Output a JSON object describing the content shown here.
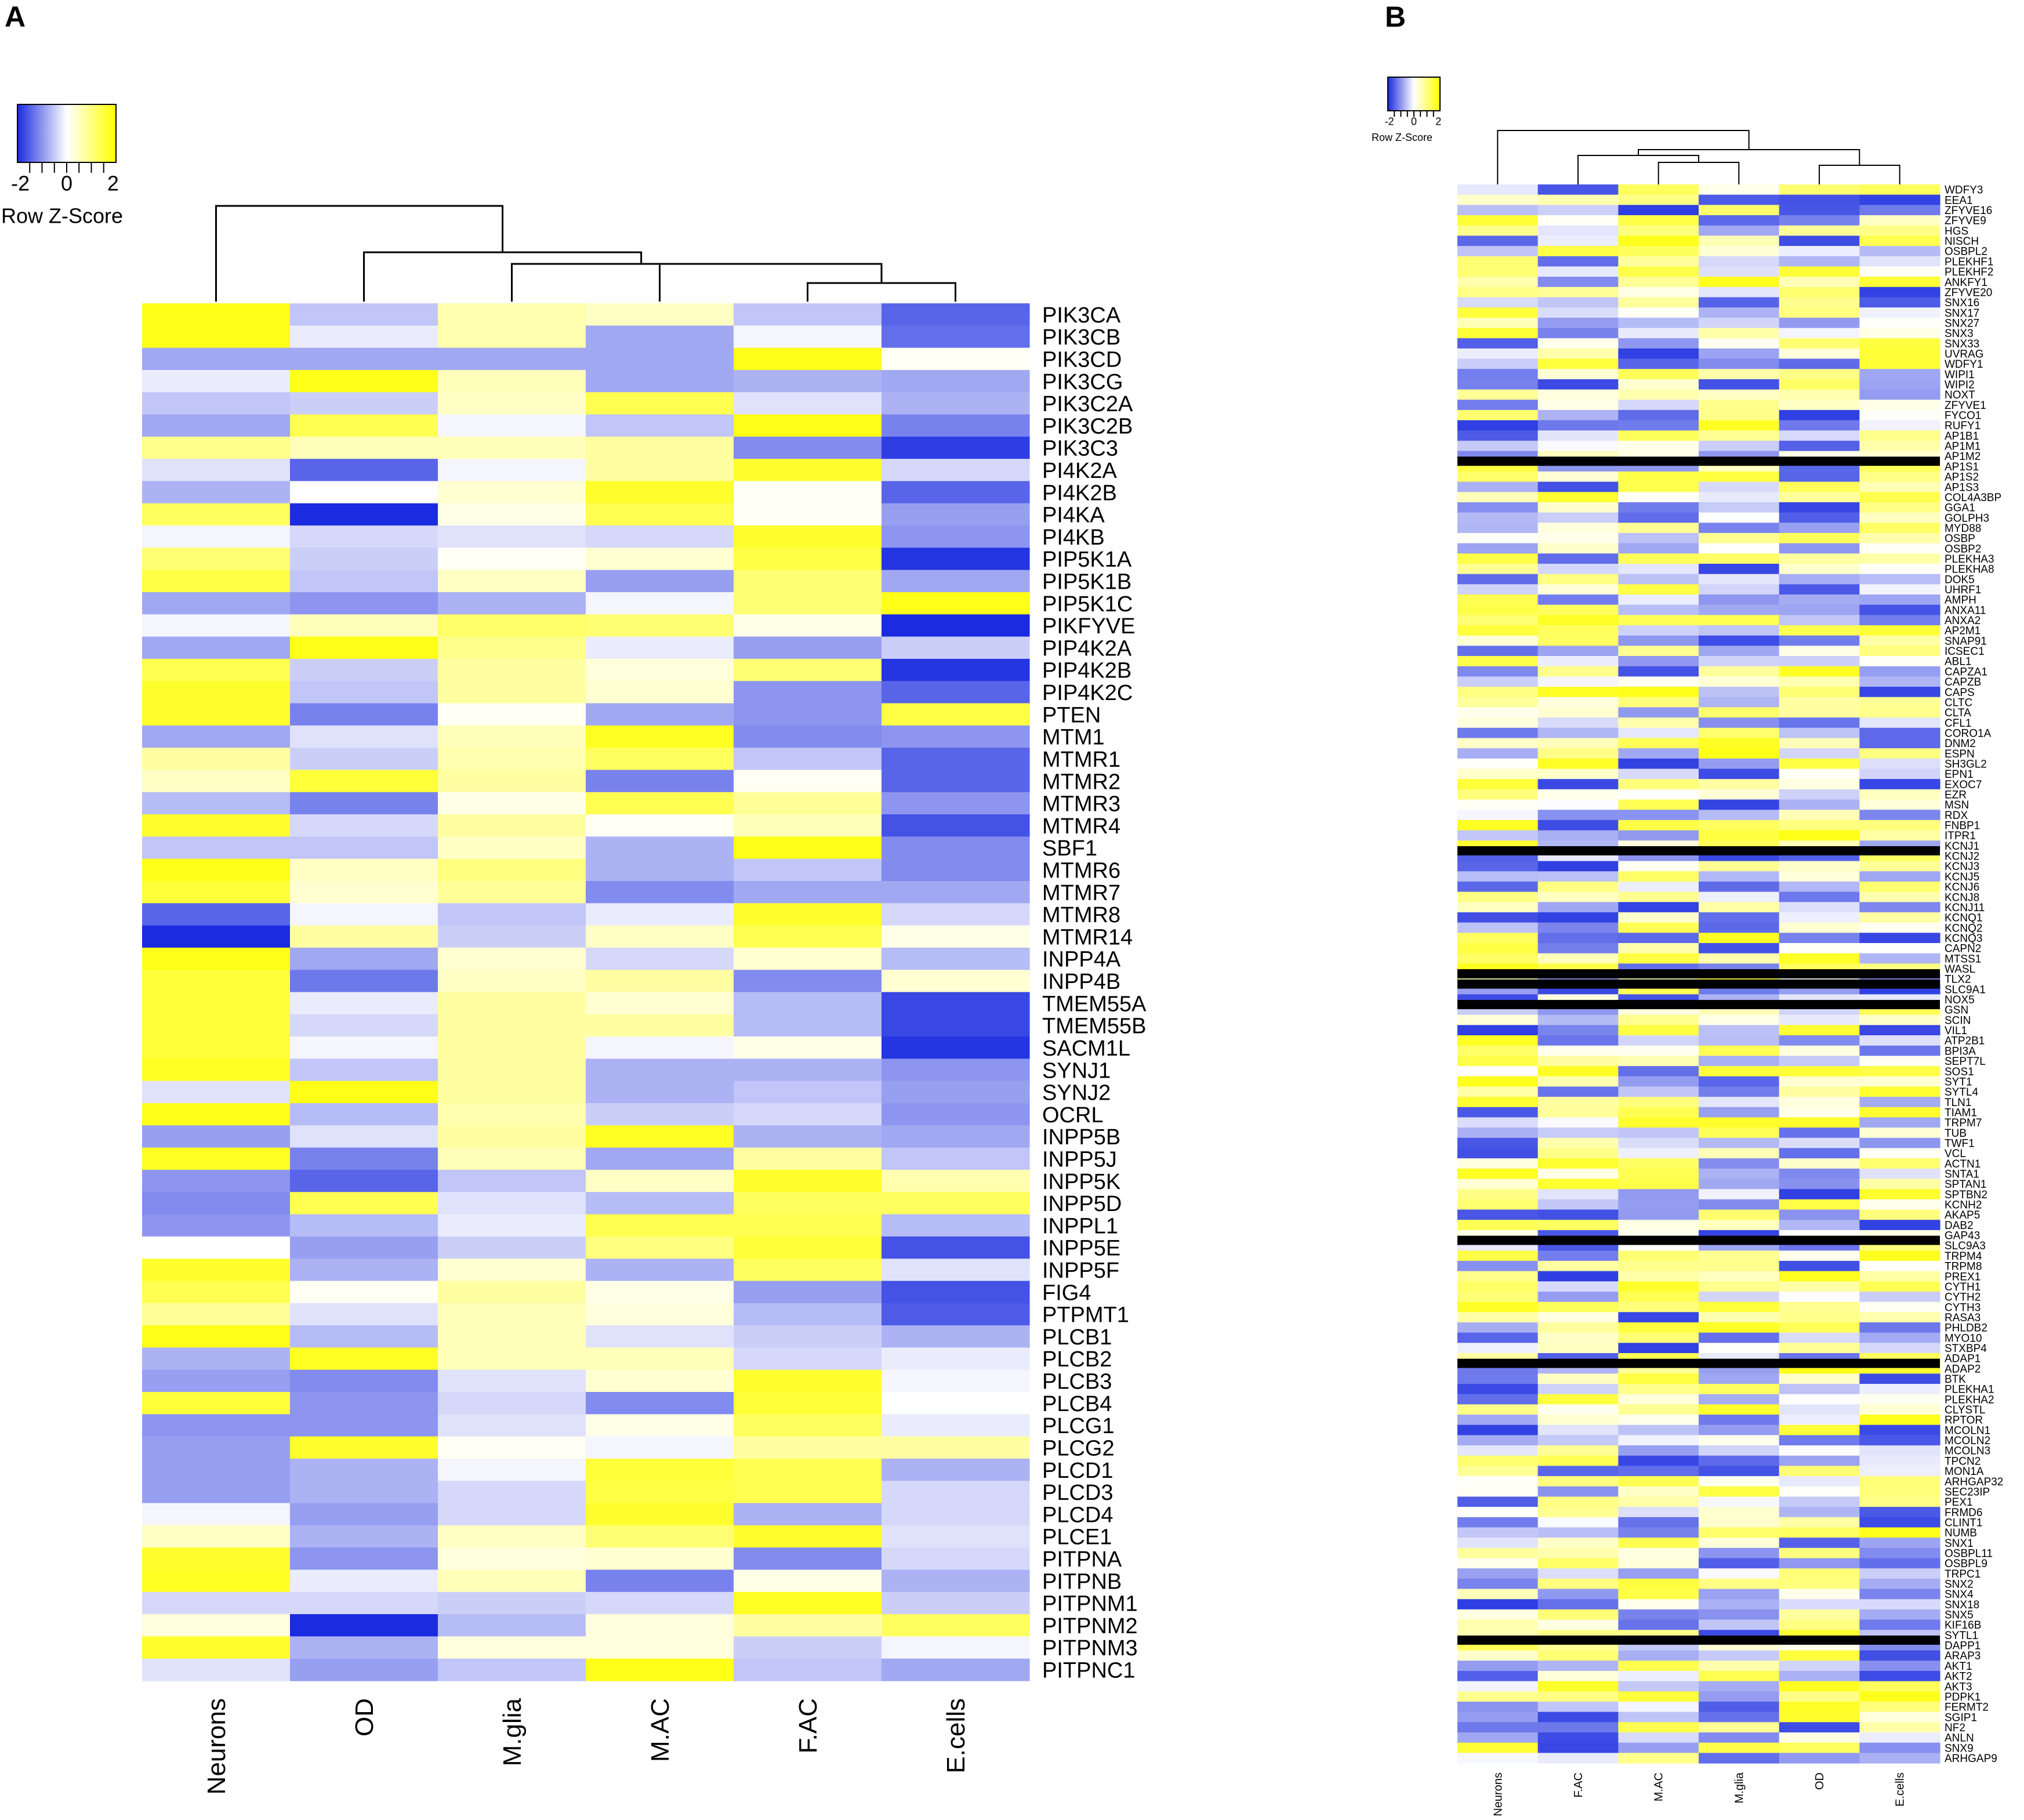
{
  "panels": {
    "a_label": "A",
    "b_label": "B"
  },
  "chart_data": [
    {
      "type": "heatmap",
      "panel": "A",
      "title": "",
      "legend": {
        "ticks": [
          "-2",
          "0",
          "2"
        ],
        "label": "Row Z-Score",
        "colors": {
          "low": "#1a2be0",
          "mid": "#ffffff",
          "high": "#ffff00"
        }
      },
      "columns": [
        "Neurons",
        "OD",
        "M.glia",
        "M.AC",
        "F.AC",
        "E.cells"
      ],
      "rows": [
        "PIK3CA",
        "PIK3CB",
        "PIK3CD",
        "PIK3CG",
        "PIK3C2A",
        "PIK3C2B",
        "PIK3C3",
        "PI4K2A",
        "PI4K2B",
        "PI4KA",
        "PI4KB",
        "PIP5K1A",
        "PIP5K1B",
        "PIP5K1C",
        "PIKFYVE",
        "PIP4K2A",
        "PIP4K2B",
        "PIP4K2C",
        "PTEN",
        "MTM1",
        "MTMR1",
        "MTMR2",
        "MTMR3",
        "MTMR4",
        "SBF1",
        "MTMR6",
        "MTMR7",
        "MTMR8",
        "MTMR14",
        "INPP4A",
        "INPP4B",
        "TMEM55A",
        "TMEM55B",
        "SACM1L",
        "SYNJ1",
        "SYNJ2",
        "OCRL",
        "INPP5B",
        "INPP5J",
        "INPP5K",
        "INPP5D",
        "INPPL1",
        "INPP5E",
        "INPP5F",
        "FIG4",
        "PTPMT1",
        "PLCB1",
        "PLCB2",
        "PLCB3",
        "PLCB4",
        "PLCG1",
        "PLCG2",
        "PLCD1",
        "PLCD3",
        "PLCD4",
        "PLCE1",
        "PITPNA",
        "PITPNB",
        "PITPNM1",
        "PITPNM2",
        "PITPNM3",
        "PITPNC1"
      ],
      "values": [
        [
          2,
          -0.6,
          0.7,
          0.5,
          -0.6,
          -1.6
        ],
        [
          2,
          -0.2,
          0.7,
          -0.9,
          -0.1,
          -1.5
        ],
        [
          -0.9,
          -0.9,
          -0.9,
          -0.9,
          2,
          0.1
        ],
        [
          -0.2,
          2,
          0.6,
          -0.9,
          -0.8,
          -0.9
        ],
        [
          -0.6,
          -0.5,
          0.5,
          1.5,
          -0.3,
          -0.8
        ],
        [
          -0.9,
          1.5,
          -0.1,
          -0.6,
          2,
          -1.3
        ],
        [
          1,
          0.6,
          0.6,
          0.8,
          -1.2,
          -2
        ],
        [
          -0.3,
          -1.6,
          -0.1,
          0.8,
          1.8,
          -0.4
        ],
        [
          -0.8,
          0,
          0.4,
          1.8,
          0.1,
          -1.6
        ],
        [
          1.4,
          -2.2,
          0.2,
          1.5,
          0.1,
          -1
        ],
        [
          -0.1,
          -0.4,
          -0.3,
          -0.4,
          1.8,
          -1.1
        ],
        [
          1.2,
          -0.5,
          0.1,
          0.4,
          1.6,
          -2.1
        ],
        [
          1.6,
          -0.6,
          0.5,
          -1,
          1.2,
          -0.9
        ],
        [
          -0.9,
          -1.1,
          -0.8,
          -0.1,
          1.2,
          2
        ],
        [
          -0.1,
          0.6,
          1.3,
          1.2,
          0.2,
          -2.2
        ],
        [
          -0.9,
          2,
          1,
          -0.2,
          -1,
          -0.5
        ],
        [
          1.5,
          -0.5,
          0.8,
          0.3,
          1.2,
          -2.1
        ],
        [
          1.8,
          -0.6,
          0.8,
          0.4,
          -1.1,
          -1.6
        ],
        [
          1.8,
          -1.3,
          0.1,
          -0.9,
          -1.1,
          1.6
        ],
        [
          -0.9,
          -0.3,
          0.6,
          1.9,
          -1.2,
          -1.1
        ],
        [
          0.8,
          -0.5,
          0.7,
          1.4,
          -0.6,
          -1.6
        ],
        [
          0.5,
          1.7,
          0.8,
          -1.3,
          0.1,
          -1.6
        ],
        [
          -0.7,
          -1.3,
          0.2,
          1.5,
          0.9,
          -1.1
        ],
        [
          1.8,
          -0.4,
          0.8,
          0.1,
          0.6,
          -1.8
        ],
        [
          -0.6,
          -0.6,
          0.5,
          -0.8,
          2,
          -1.2
        ],
        [
          2,
          0.5,
          1.1,
          -0.8,
          -0.6,
          -1.2
        ],
        [
          1.7,
          0.4,
          0.9,
          -1.2,
          -0.9,
          -0.9
        ],
        [
          -1.6,
          -0.1,
          -0.6,
          -0.2,
          1.8,
          -0.4
        ],
        [
          -2.2,
          0.8,
          -0.5,
          0.5,
          1.5,
          0.2
        ],
        [
          2,
          -0.9,
          0.4,
          -0.4,
          0.4,
          -0.7
        ],
        [
          1.7,
          -1.4,
          0.5,
          0.8,
          -1.2,
          0.4
        ],
        [
          1.7,
          -0.2,
          0.8,
          0.4,
          -0.7,
          -1.9
        ],
        [
          1.7,
          -0.4,
          0.8,
          0.8,
          -0.7,
          -1.9
        ],
        [
          1.7,
          -0.1,
          0.8,
          -0.1,
          0.2,
          -2.1
        ],
        [
          1.9,
          -0.6,
          0.8,
          -0.8,
          -0.8,
          -1.1
        ],
        [
          -0.3,
          2,
          0.8,
          -0.8,
          -0.6,
          -1
        ],
        [
          2,
          -0.7,
          0.7,
          -0.5,
          -0.4,
          -1.1
        ],
        [
          -1,
          -0.3,
          0.8,
          1.9,
          -0.8,
          -0.9
        ],
        [
          1.9,
          -1.3,
          0.6,
          -0.9,
          0.8,
          -0.6
        ],
        [
          -1.1,
          -1.6,
          -0.6,
          0.5,
          1.8,
          0.7
        ],
        [
          -1.2,
          1.5,
          -0.3,
          -0.7,
          1.4,
          1.4
        ],
        [
          -1.1,
          -0.7,
          -0.2,
          1.5,
          1.5,
          -0.7
        ],
        [
          0,
          -1,
          -0.5,
          1.1,
          1.7,
          -1.8
        ],
        [
          1.8,
          -0.8,
          0.4,
          -0.8,
          1.4,
          -0.3
        ],
        [
          1.5,
          0.1,
          0.8,
          0.2,
          -1,
          -1.8
        ],
        [
          0.9,
          -0.3,
          0.6,
          0.3,
          -0.7,
          -1.7
        ],
        [
          2,
          -0.7,
          0.6,
          -0.3,
          -0.5,
          -0.8
        ],
        [
          -0.8,
          1.9,
          0.6,
          0.6,
          -0.4,
          -0.2
        ],
        [
          -1,
          -1.2,
          -0.3,
          0.4,
          1.8,
          -0.1
        ],
        [
          1.7,
          -1.1,
          -0.4,
          -1.2,
          1.7,
          0
        ],
        [
          -1.1,
          -1.1,
          -0.3,
          0.2,
          1.4,
          -0.2
        ],
        [
          -1,
          1.8,
          0.1,
          -0.1,
          0.8,
          0.8
        ],
        [
          -1,
          -0.8,
          -0.1,
          1.7,
          1.5,
          -0.8
        ],
        [
          -1,
          -0.8,
          -0.4,
          1.6,
          1.5,
          -0.4
        ],
        [
          -0.1,
          -1,
          -0.4,
          1.8,
          -0.8,
          -0.4
        ],
        [
          0.5,
          -0.8,
          0.5,
          1.2,
          1.8,
          -0.3
        ],
        [
          1.8,
          -1.1,
          0.3,
          0.4,
          -1.2,
          -0.4
        ],
        [
          1.9,
          -0.2,
          0.6,
          -1.3,
          0.2,
          -0.8
        ],
        [
          -0.4,
          -0.4,
          -0.5,
          -0.4,
          1.9,
          -0.5
        ],
        [
          0.3,
          -2.2,
          -0.7,
          0.3,
          0.8,
          1.4
        ],
        [
          1.8,
          -0.8,
          0.3,
          0.3,
          -0.5,
          -0.1
        ],
        [
          -0.3,
          -1,
          -0.6,
          2,
          -0.6,
          -0.9
        ]
      ]
    },
    {
      "type": "heatmap",
      "panel": "B",
      "title": "",
      "legend": {
        "ticks": [
          "-2",
          "0",
          "2"
        ],
        "label": "Row Z-Score",
        "colors": {
          "low": "#1a2be0",
          "mid": "#ffffff",
          "high": "#ffff00"
        }
      },
      "columns": [
        "Neurons",
        "F.AC",
        "M.AC",
        "M.glia",
        "OD",
        "E.cells"
      ],
      "rows": [
        "WDFY3",
        "EEA1",
        "ZFYVE16",
        "ZFYVE9",
        "HGS",
        "NISCH",
        "OSBPL2",
        "PLEKHF1",
        "PLEKHF2",
        "ANKFY1",
        "ZFYVE20",
        "SNX16",
        "SNX17",
        "SNX27",
        "SNX3",
        "SNX33",
        "UVRAG",
        "WDFY1",
        "WIPI1",
        "WIPI2",
        "NOXT",
        "ZFYVE1",
        "FYCO1",
        "RUFY1",
        "AP1B1",
        "AP1M1",
        "AP1M2",
        "AP1S1",
        "AP1S2",
        "AP1S3",
        "COL4A3BP",
        "GGA1",
        "GOLPH3",
        "MYD88",
        "OSBP",
        "OSBP2",
        "PLEKHA3",
        "PLEKHA8",
        "DOK5",
        "UHRF1",
        "AMPH",
        "ANXA11",
        "ANXA2",
        "AP2M1",
        "SNAP91",
        "ICSEC1",
        "ABL1",
        "CAPZA1",
        "CAPZB",
        "CAPS",
        "CLTC",
        "CLTA",
        "CFL1",
        "CORO1A",
        "DNM2",
        "ESPN",
        "SH3GL2",
        "EPN1",
        "EXOC7",
        "EZR",
        "MSN",
        "RDX",
        "FNBP1",
        "ITPR1",
        "KCNJ1",
        "KCNJ2",
        "KCNJ3",
        "KCNJ5",
        "KCNJ6",
        "KCNJ8",
        "KCNJ11",
        "KCNQ1",
        "KCNQ2",
        "KCNQ3",
        "CAPN2",
        "MTSS1",
        "WASL",
        "TLX2",
        "SLC9A1",
        "NOX5",
        "GSN",
        "SCIN",
        "VIL1",
        "ATP2B1",
        "BPI3A",
        "SEPT7L",
        "SOS1",
        "SYT1",
        "SYTL4",
        "TLN1",
        "TIAM1",
        "TRPM7",
        "TUB",
        "TWF1",
        "VCL",
        "ACTN1",
        "SNTA1",
        "SPTAN1",
        "SPTBN2",
        "KCNH2",
        "AKAP5",
        "DAB2",
        "GAP43",
        "SLC9A3",
        "TRPM4",
        "TRPM8",
        "PREX1",
        "CYTH1",
        "CYTH2",
        "CYTH3",
        "RASA3",
        "PHLDB2",
        "MYO10",
        "STXBP4",
        "ADAP1",
        "ADAP2",
        "BTK",
        "PLEKHA1",
        "PLEKHA2",
        "CLYSTL",
        "RPTOR",
        "MCOLN1",
        "MCOLN2",
        "MCOLN3",
        "TPCN2",
        "MON1A",
        "ARHGAP32",
        "SEC23IP",
        "PEX1",
        "FRMD6",
        "CLINT1",
        "NUMB",
        "SNX1",
        "OSBPL11",
        "OSBPL9",
        "TRPC1",
        "SNX2",
        "SNX4",
        "SNX18",
        "SNX5",
        "KIF16B",
        "SYTL1",
        "DAPP1",
        "ARAP3",
        "AKT1",
        "AKT2",
        "AKT3",
        "PDPK1",
        "FERMT2",
        "SGIP1",
        "NF2",
        "ANLN",
        "SNX9",
        "ARHGAP9"
      ],
      "separator_rows_before": [
        "AP1S1",
        "KCNJ2",
        "TLX2",
        "SLC9A1",
        "GSN",
        "SLC9A3",
        "ADAP2",
        "DAPP1"
      ]
    }
  ]
}
